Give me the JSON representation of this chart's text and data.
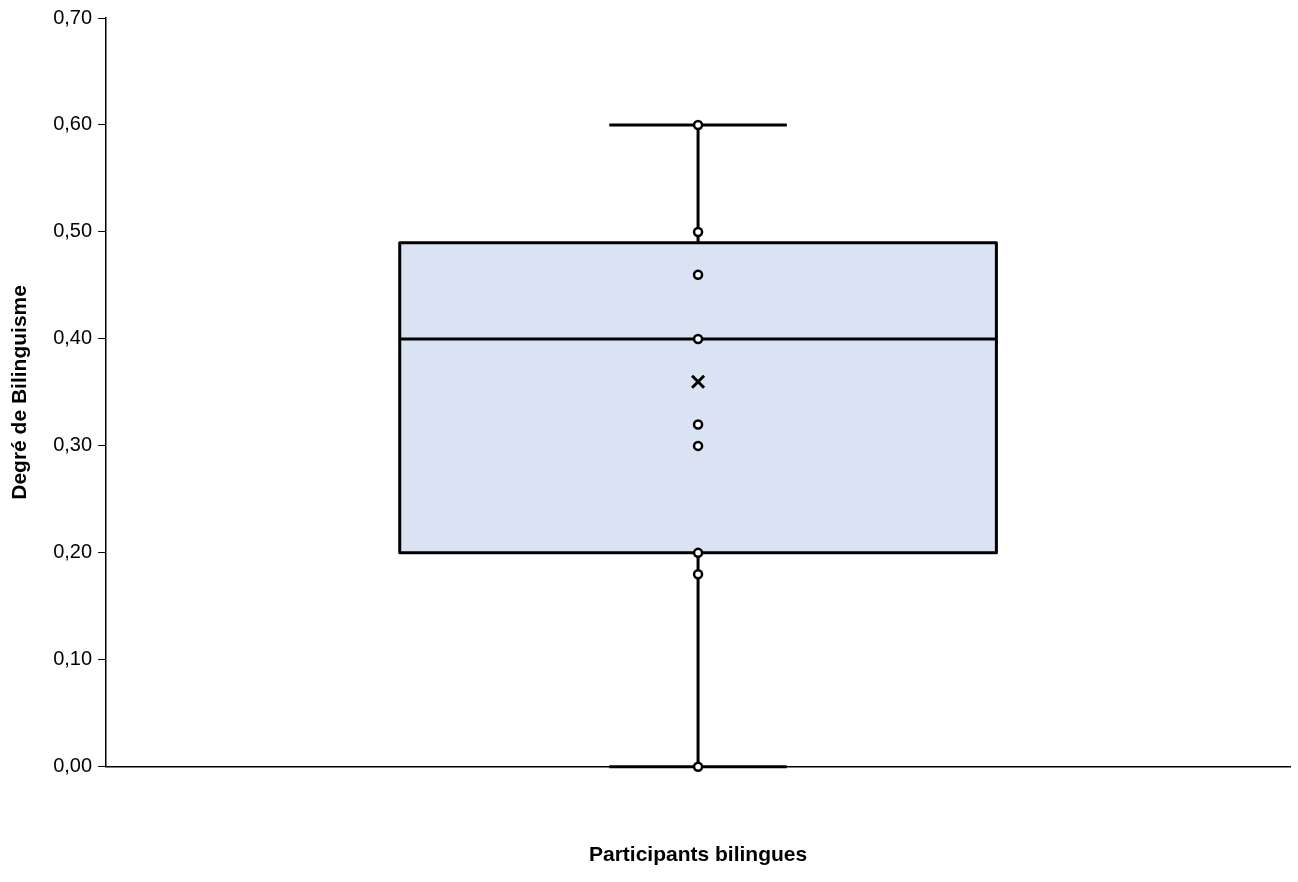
{
  "chart_data": {
    "type": "box",
    "xlabel": "Participants bilingues",
    "ylabel": "Degré de Bilinguisme",
    "categories": [
      null
    ],
    "ylim": [
      0,
      0.7
    ],
    "yticks": [
      {
        "value": 0,
        "label": "0,00"
      },
      {
        "value": 0.1,
        "label": "0,10"
      },
      {
        "value": 0.2,
        "label": "0,20"
      },
      {
        "value": 0.3,
        "label": "0,30"
      },
      {
        "value": 0.4,
        "label": "0,40"
      },
      {
        "value": 0.5,
        "label": "0,50"
      },
      {
        "value": 0.6,
        "label": "0,60"
      },
      {
        "value": 0.7,
        "label": "0,70"
      }
    ],
    "grid": false,
    "legend": false,
    "marker": "circle",
    "color": "#dae3f3",
    "boxes": [
      {
        "low": 0,
        "q1": 0.2,
        "median": 0.4,
        "q3": 0.49,
        "high": 0.6,
        "mean": 0.36,
        "outliers": [
          0.6,
          0.5,
          0.46,
          0.4,
          0.32,
          0.3,
          0.2,
          0.18,
          0
        ]
      }
    ]
  }
}
